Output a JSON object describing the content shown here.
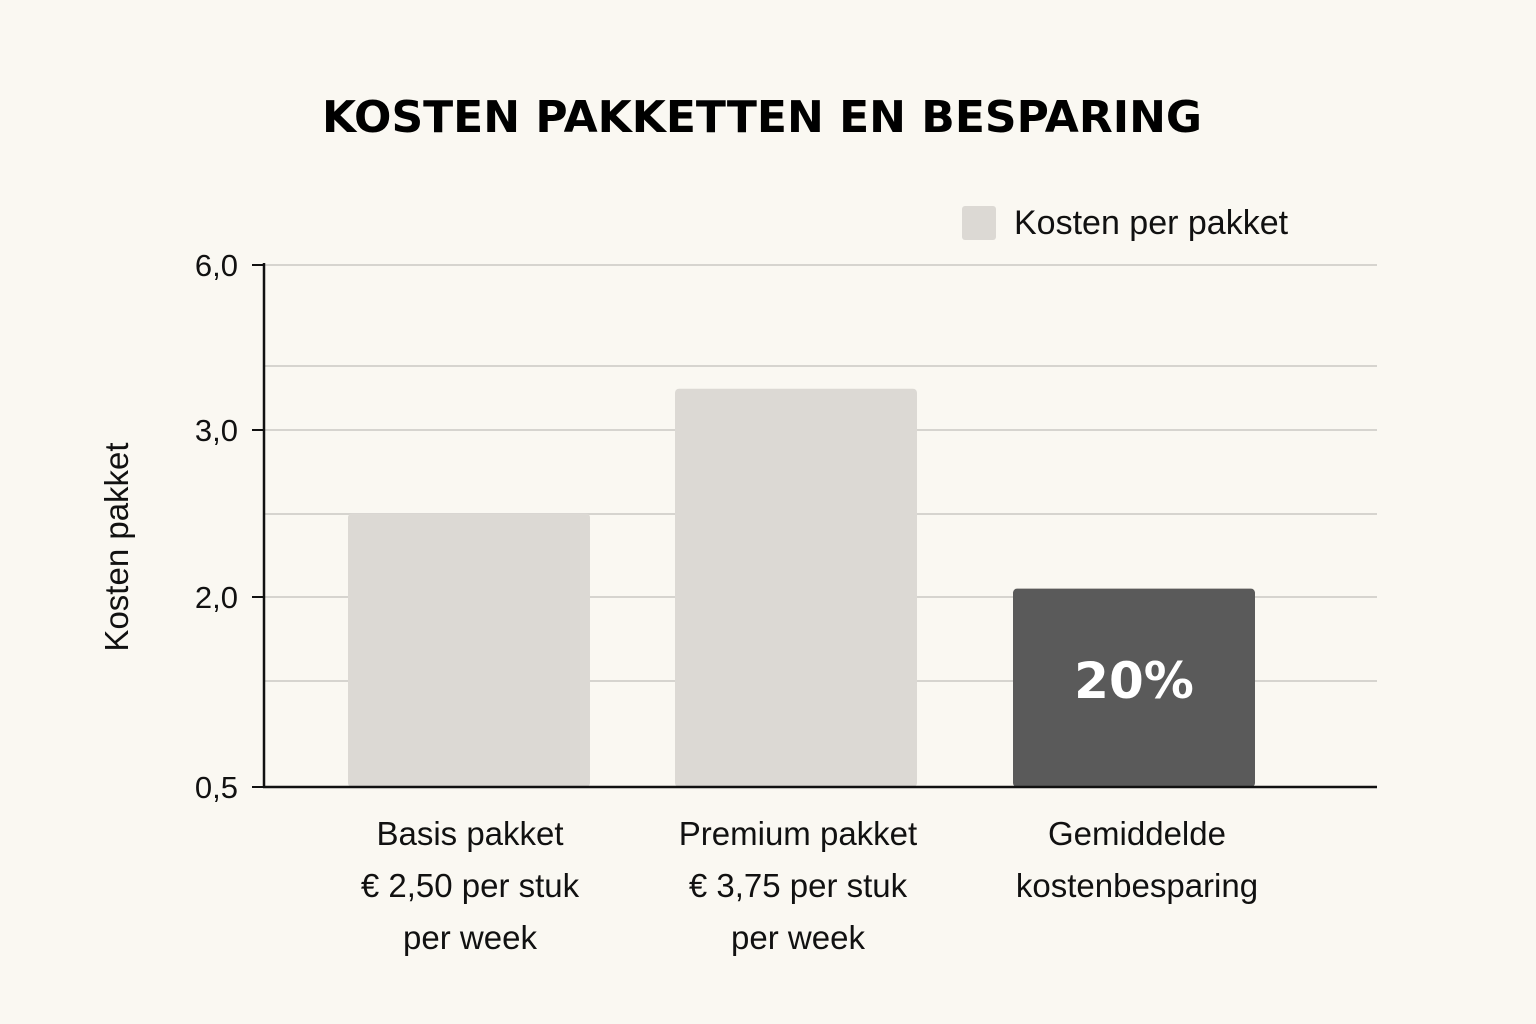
{
  "chart_data": {
    "type": "bar",
    "title": "KOSTEN PAKKETTEN EN BESPARING",
    "ylabel": "Kosten pakket",
    "xlabel": "",
    "y_tick_labels": [
      "6,0",
      "3,0",
      "2,0",
      "0,5"
    ],
    "legend": {
      "label": "Kosten per pakket",
      "position": "top-right",
      "swatch_color": "#dcd9d4"
    },
    "grid": true,
    "categories": [
      {
        "lines": [
          "Basis pakket",
          "€ 2,50 per stuk",
          "per week"
        ]
      },
      {
        "lines": [
          "Premium pakket",
          "€ 3,75 per stuk",
          "per week"
        ]
      },
      {
        "lines": [
          "Gemiddelde",
          "kostenbesparing"
        ]
      }
    ],
    "series": [
      {
        "values": [
          2.5,
          3.75,
          2.05
        ],
        "colors": [
          "#dcd9d4",
          "#dcd9d4",
          "#5a5a5a"
        ]
      }
    ],
    "bar_labels": [
      "",
      "",
      "20%"
    ],
    "bar_label_color": "#ffffff"
  }
}
